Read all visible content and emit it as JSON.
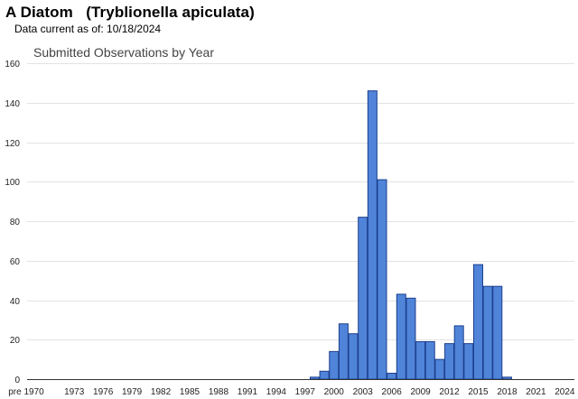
{
  "header": {
    "title": "A Diatom   (Tryblionella apiculata)",
    "data_current": "Data current as of: 10/18/2024"
  },
  "colors": {
    "bar_fill": "#4f84d9",
    "bar_stroke": "#1d3f8c",
    "grid": "#e3e3e3"
  },
  "chart_data": {
    "type": "bar",
    "title": "Submitted Observations by Year",
    "xlabel": "",
    "ylabel": "",
    "ylim": [
      0,
      160
    ],
    "yticks": [
      0,
      20,
      40,
      60,
      80,
      100,
      120,
      140,
      160
    ],
    "grid": true,
    "legend": "none",
    "categories": [
      "pre 1970",
      "1970",
      "1971",
      "1972",
      "1973",
      "1974",
      "1975",
      "1976",
      "1977",
      "1978",
      "1979",
      "1980",
      "1981",
      "1982",
      "1983",
      "1984",
      "1985",
      "1986",
      "1987",
      "1988",
      "1989",
      "1990",
      "1991",
      "1992",
      "1993",
      "1994",
      "1995",
      "1996",
      "1997",
      "1998",
      "1999",
      "2000",
      "2001",
      "2002",
      "2003",
      "2004",
      "2005",
      "2006",
      "2007",
      "2008",
      "2009",
      "2010",
      "2011",
      "2012",
      "2013",
      "2014",
      "2015",
      "2016",
      "2017",
      "2018",
      "2019",
      "2020",
      "2021",
      "2022",
      "2023",
      "2024"
    ],
    "tick_labels": [
      "pre 1970",
      "1973",
      "1976",
      "1979",
      "1982",
      "1985",
      "1988",
      "1991",
      "1994",
      "1997",
      "2000",
      "2003",
      "2006",
      "2009",
      "2012",
      "2015",
      "2018",
      "2021",
      "2024"
    ],
    "values": [
      0,
      0,
      0,
      0,
      0,
      0,
      0,
      0,
      0,
      0,
      0,
      0,
      0,
      0,
      0,
      0,
      0,
      0,
      0,
      0,
      0,
      0,
      0,
      0,
      0,
      0,
      0,
      0,
      0,
      1,
      4,
      14,
      28,
      23,
      82,
      146,
      101,
      3,
      43,
      41,
      19,
      19,
      10,
      18,
      27,
      18,
      58,
      47,
      47,
      1,
      0,
      0,
      0,
      0,
      0,
      0
    ]
  }
}
